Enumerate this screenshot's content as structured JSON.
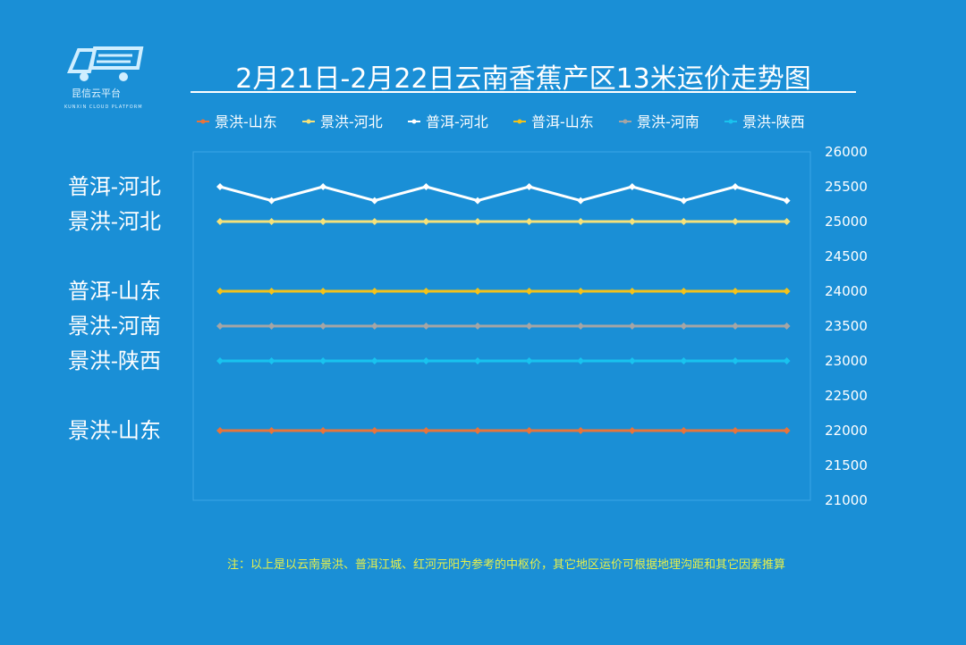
{
  "page": {
    "background": "#1a8fd6",
    "title": "2月21日-2月22日云南香蕉产区13米运价走势图",
    "note": "注：以上是以云南景洪、普洱江城、红河元阳为参考的中枢价，其它地区运价可根据地理沟距和其它因素推算",
    "note_color": "#e8f04a"
  },
  "logo": {
    "icon": "truck-logo-icon",
    "name": "昆信云平台",
    "subtitle": "KUNXIN CLOUD PLATFORM"
  },
  "chart_data": {
    "type": "line",
    "title": "2月21日-2月22日云南香蕉产区13米运价走势图",
    "ylim": [
      21000,
      26000
    ],
    "yticks": [
      21000,
      21500,
      22000,
      22500,
      23000,
      23500,
      24000,
      24500,
      25000,
      25500,
      26000
    ],
    "y_axis_position": "right",
    "grid": false,
    "legend_position": "top",
    "series": [
      {
        "name": "景洪-山东",
        "color": "#e8743b",
        "label": "景洪-山东",
        "values": [
          22000,
          22000,
          22000,
          22000,
          22000,
          22000,
          22000,
          22000,
          22000,
          22000,
          22000,
          22000
        ]
      },
      {
        "name": "景洪-河北",
        "color": "#f5e27a",
        "label": "景洪-河北",
        "values": [
          25000,
          25000,
          25000,
          25000,
          25000,
          25000,
          25000,
          25000,
          25000,
          25000,
          25000,
          25000
        ]
      },
      {
        "name": "普洱-河北",
        "color": "#ffffff",
        "label": "普洱-河北",
        "values": [
          25500,
          25300,
          25500,
          25300,
          25500,
          25300,
          25500,
          25300,
          25500,
          25300,
          25500,
          25300
        ]
      },
      {
        "name": "普洱-山东",
        "color": "#f2c21b",
        "label": "普洱-山东",
        "values": [
          24000,
          24000,
          24000,
          24000,
          24000,
          24000,
          24000,
          24000,
          24000,
          24000,
          24000,
          24000
        ]
      },
      {
        "name": "景洪-河南",
        "color": "#a5a5a5",
        "label": "景洪-河南",
        "values": [
          23500,
          23500,
          23500,
          23500,
          23500,
          23500,
          23500,
          23500,
          23500,
          23500,
          23500,
          23500
        ]
      },
      {
        "name": "景洪-陕西",
        "color": "#19c3ef",
        "label": "景洪-陕西",
        "values": [
          23000,
          23000,
          23000,
          23000,
          23000,
          23000,
          23000,
          23000,
          23000,
          23000,
          23000,
          23000
        ]
      }
    ],
    "side_labels": [
      {
        "text": "普洱-河北",
        "series": "普洱-河北"
      },
      {
        "text": "景洪-河北",
        "series": "景洪-河北"
      },
      {
        "text": "普洱-山东",
        "series": "普洱-山东"
      },
      {
        "text": "景洪-河南",
        "series": "景洪-河南"
      },
      {
        "text": "景洪-陕西",
        "series": "景洪-陕西"
      },
      {
        "text": "景洪-山东",
        "series": "景洪-山东"
      }
    ]
  }
}
